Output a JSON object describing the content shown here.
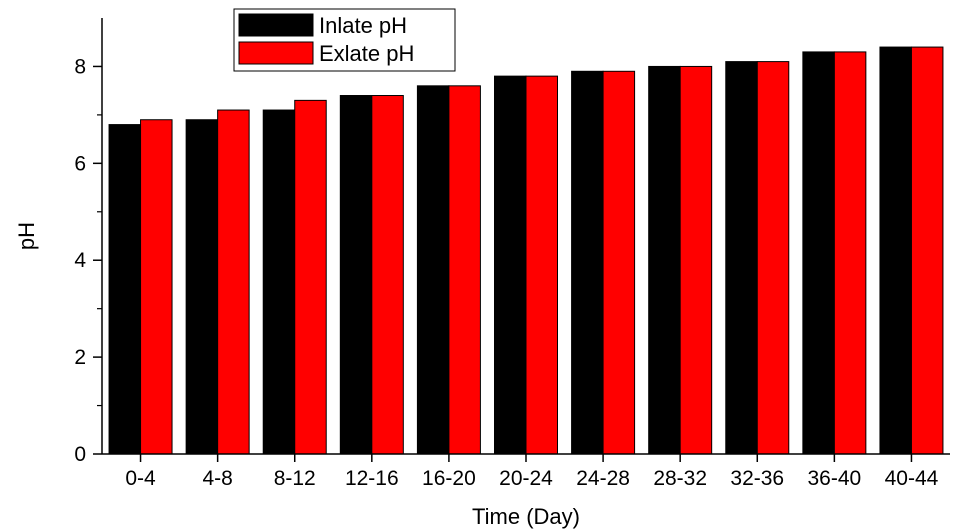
{
  "chart_data": {
    "type": "bar",
    "title": "",
    "xlabel": "Time (Day)",
    "ylabel": "pH",
    "ylim": [
      0,
      9
    ],
    "yticks": [
      0,
      2,
      4,
      6,
      8
    ],
    "categories": [
      "0-4",
      "4-8",
      "8-12",
      "12-16",
      "16-20",
      "20-24",
      "24-28",
      "28-32",
      "32-36",
      "36-40",
      "40-44"
    ],
    "series": [
      {
        "name": "Inlate pH",
        "color": "#000000",
        "values": [
          6.8,
          6.9,
          7.1,
          7.4,
          7.6,
          7.8,
          7.9,
          8.0,
          8.1,
          8.3,
          8.4
        ]
      },
      {
        "name": "Exlate pH",
        "color": "#ff0000",
        "values": [
          6.9,
          7.1,
          7.3,
          7.4,
          7.6,
          7.8,
          7.9,
          8.0,
          8.1,
          8.3,
          8.4
        ]
      }
    ],
    "legend_position": "top-left",
    "grid": false
  }
}
